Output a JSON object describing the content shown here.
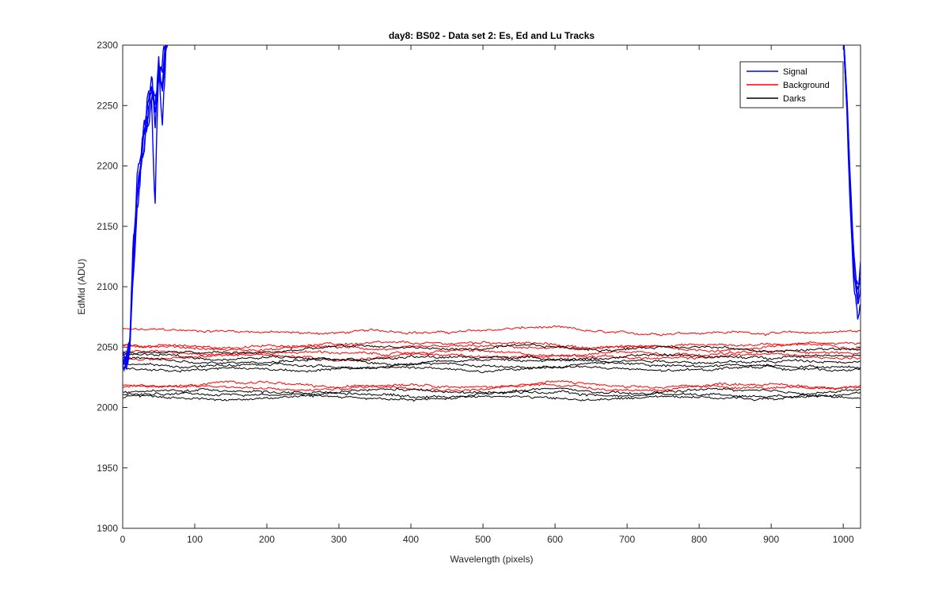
{
  "chart_data": {
    "type": "line",
    "title": "day8: BS02 - Data set 2: Es, Ed and Lu Tracks",
    "xlabel": "Wavelength (pixels)",
    "ylabel": "EdMid (ADU)",
    "xlim": [
      0,
      1024
    ],
    "ylim": [
      1900,
      2300
    ],
    "x_ticks": [
      0,
      100,
      200,
      300,
      400,
      500,
      600,
      700,
      800,
      900,
      1000
    ],
    "y_ticks": [
      1900,
      1950,
      2000,
      2050,
      2100,
      2150,
      2200,
      2250,
      2300
    ],
    "grid": false,
    "legend_position": "top-right",
    "legend": [
      {
        "name": "Signal",
        "color": "#0000ff"
      },
      {
        "name": "Background",
        "color": "#ff0000"
      },
      {
        "name": "Darks",
        "color": "#000000"
      }
    ],
    "series": [
      {
        "group": "Signal",
        "color": "#0000ff",
        "x": [
          0,
          5,
          10,
          15,
          20,
          25,
          30,
          35,
          40,
          45,
          50,
          55,
          60,
          65,
          70,
          1000,
          1005,
          1010,
          1015,
          1020,
          1024
        ],
        "y": [
          2040,
          2035,
          2050,
          2120,
          2180,
          2200,
          2225,
          2240,
          2260,
          2255,
          2270,
          2290,
          2300,
          2310,
          2320,
          2310,
          2260,
          2180,
          2120,
          2100,
          2105
        ]
      },
      {
        "group": "Signal",
        "color": "#0000ff",
        "x": [
          0,
          5,
          10,
          15,
          20,
          25,
          30,
          35,
          40,
          45,
          50,
          55,
          60,
          65,
          70,
          1000,
          1005,
          1010,
          1015,
          1020,
          1024
        ],
        "y": [
          2042,
          2038,
          2055,
          2130,
          2190,
          2210,
          2235,
          2250,
          2270,
          2245,
          2280,
          2265,
          2300,
          2310,
          2320,
          2310,
          2250,
          2170,
          2110,
          2095,
          2110
        ]
      },
      {
        "group": "Signal",
        "color": "#0000ff",
        "x": [
          0,
          5,
          10,
          15,
          20,
          25,
          30,
          35,
          40,
          45,
          50,
          55,
          60,
          65,
          70,
          1000,
          1005,
          1010,
          1015,
          1020,
          1024
        ],
        "y": [
          2045,
          2040,
          2060,
          2140,
          2170,
          2205,
          2230,
          2255,
          2275,
          2235,
          2290,
          2230,
          2300,
          2310,
          2320,
          2310,
          2255,
          2175,
          2115,
          2085,
          2098
        ]
      },
      {
        "group": "Signal",
        "color": "#0000ff",
        "x": [
          0,
          5,
          10,
          15,
          20,
          25,
          30,
          35,
          40,
          45,
          50,
          55,
          60,
          65,
          70,
          1000,
          1005,
          1010,
          1015,
          1020,
          1024
        ],
        "y": [
          2038,
          2036,
          2052,
          2115,
          2160,
          2195,
          2220,
          2235,
          2250,
          2170,
          2285,
          2260,
          2300,
          2310,
          2320,
          2310,
          2245,
          2160,
          2100,
          2075,
          2085
        ]
      },
      {
        "group": "Signal",
        "color": "#0000ff",
        "x": [
          0,
          5,
          10,
          15,
          20,
          25,
          30,
          35,
          40,
          45,
          50,
          55,
          60,
          65,
          70,
          1000,
          1005,
          1010,
          1015,
          1020,
          1024
        ],
        "y": [
          2041,
          2037,
          2048,
          2125,
          2175,
          2200,
          2215,
          2245,
          2262,
          2250,
          2275,
          2280,
          2300,
          2310,
          2320,
          2310,
          2258,
          2185,
          2125,
          2090,
          2118
        ]
      },
      {
        "group": "Background",
        "color": "#ff0000",
        "x": [
          0,
          100,
          200,
          300,
          400,
          500,
          600,
          700,
          800,
          900,
          1024
        ],
        "y": [
          2066,
          2062,
          2064,
          2061,
          2063,
          2064,
          2065,
          2062,
          2061,
          2063,
          2062
        ]
      },
      {
        "group": "Background",
        "color": "#ff0000",
        "x": [
          0,
          100,
          200,
          300,
          400,
          500,
          600,
          700,
          800,
          900,
          1024
        ],
        "y": [
          2052,
          2049,
          2052,
          2051,
          2054,
          2053,
          2052,
          2050,
          2051,
          2054,
          2052
        ]
      },
      {
        "group": "Background",
        "color": "#ff0000",
        "x": [
          0,
          100,
          200,
          300,
          400,
          500,
          600,
          700,
          800,
          900,
          1024
        ],
        "y": [
          2050,
          2050,
          2048,
          2049,
          2050,
          2049,
          2050,
          2049,
          2048,
          2051,
          2050
        ]
      },
      {
        "group": "Background",
        "color": "#ff0000",
        "x": [
          0,
          100,
          200,
          300,
          400,
          500,
          600,
          700,
          800,
          900,
          1024
        ],
        "y": [
          2045,
          2047,
          2044,
          2046,
          2045,
          2046,
          2044,
          2045,
          2046,
          2045,
          2046
        ]
      },
      {
        "group": "Background",
        "color": "#ff0000",
        "x": [
          0,
          100,
          200,
          300,
          400,
          500,
          600,
          700,
          800,
          900,
          1024
        ],
        "y": [
          2040,
          2042,
          2043,
          2041,
          2043,
          2042,
          2043,
          2041,
          2042,
          2043,
          2042
        ]
      },
      {
        "group": "Background",
        "color": "#ff0000",
        "x": [
          0,
          100,
          200,
          300,
          400,
          500,
          600,
          700,
          800,
          900,
          1024
        ],
        "y": [
          2020,
          2018,
          2021,
          2017,
          2019,
          2018,
          2020,
          2017,
          2018,
          2019,
          2018
        ]
      },
      {
        "group": "Background",
        "color": "#ff0000",
        "x": [
          0,
          100,
          200,
          300,
          400,
          500,
          600,
          700,
          800,
          900,
          1024
        ],
        "y": [
          2018,
          2017,
          2016,
          2015,
          2017,
          2016,
          2018,
          2016,
          2015,
          2017,
          2016
        ]
      },
      {
        "group": "Darks",
        "color": "#000000",
        "x": [
          0,
          100,
          200,
          300,
          400,
          500,
          600,
          700,
          800,
          900,
          1024
        ],
        "y": [
          2046,
          2044,
          2047,
          2049,
          2051,
          2048,
          2050,
          2049,
          2050,
          2048,
          2047
        ]
      },
      {
        "group": "Darks",
        "color": "#000000",
        "x": [
          0,
          100,
          200,
          300,
          400,
          500,
          600,
          700,
          800,
          900,
          1024
        ],
        "y": [
          2043,
          2041,
          2042,
          2040,
          2043,
          2040,
          2042,
          2041,
          2043,
          2042,
          2043
        ]
      },
      {
        "group": "Darks",
        "color": "#000000",
        "x": [
          0,
          100,
          200,
          300,
          400,
          500,
          600,
          700,
          800,
          900,
          1024
        ],
        "y": [
          2040,
          2038,
          2037,
          2039,
          2037,
          2039,
          2040,
          2038,
          2039,
          2037,
          2039
        ]
      },
      {
        "group": "Darks",
        "color": "#000000",
        "x": [
          0,
          100,
          200,
          300,
          400,
          500,
          600,
          700,
          800,
          900,
          1024
        ],
        "y": [
          2036,
          2035,
          2034,
          2034,
          2036,
          2035,
          2034,
          2036,
          2035,
          2034,
          2035
        ]
      },
      {
        "group": "Darks",
        "color": "#000000",
        "x": [
          0,
          100,
          200,
          300,
          400,
          500,
          600,
          700,
          800,
          900,
          1024
        ],
        "y": [
          2033,
          2032,
          2031,
          2033,
          2032,
          2031,
          2033,
          2032,
          2031,
          2033,
          2032
        ]
      },
      {
        "group": "Darks",
        "color": "#000000",
        "x": [
          0,
          100,
          200,
          300,
          400,
          500,
          600,
          700,
          800,
          900,
          1024
        ],
        "y": [
          2015,
          2013,
          2014,
          2012,
          2014,
          2013,
          2014,
          2012,
          2014,
          2013,
          2014
        ]
      },
      {
        "group": "Darks",
        "color": "#000000",
        "x": [
          0,
          100,
          200,
          300,
          400,
          500,
          600,
          700,
          800,
          900,
          1024
        ],
        "y": [
          2011,
          2010,
          2012,
          2011,
          2010,
          2011,
          2012,
          2011,
          2010,
          2011,
          2011
        ]
      },
      {
        "group": "Darks",
        "color": "#000000",
        "x": [
          0,
          100,
          200,
          300,
          400,
          500,
          600,
          700,
          800,
          900,
          1024
        ],
        "y": [
          2008,
          2007,
          2009,
          2008,
          2007,
          2009,
          2008,
          2007,
          2009,
          2008,
          2008
        ]
      }
    ]
  }
}
